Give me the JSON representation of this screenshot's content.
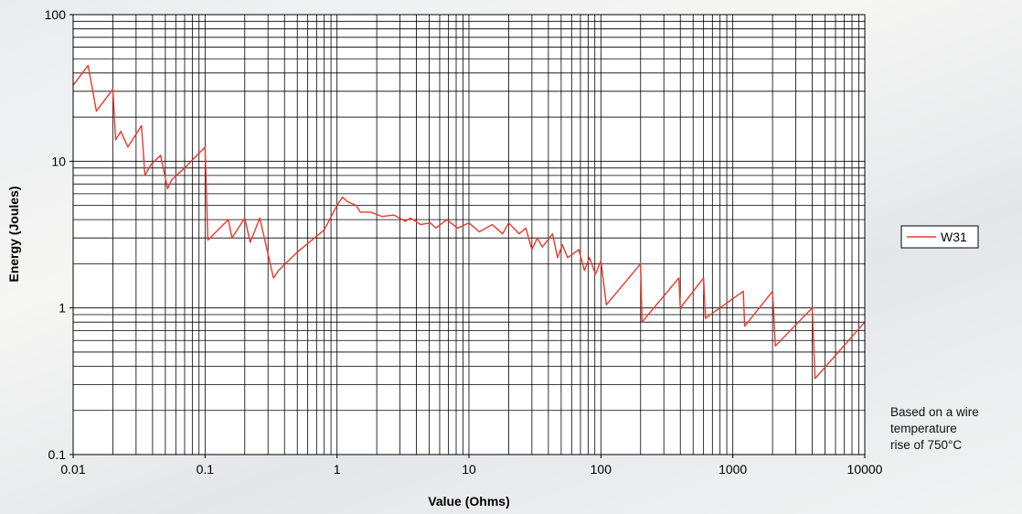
{
  "chart_data": {
    "type": "line",
    "title": "",
    "xlabel": "Value (Ohms)",
    "ylabel": "Energy (Joules)",
    "x_scale": "log",
    "y_scale": "log",
    "xlim": [
      0.01,
      10000
    ],
    "ylim": [
      0.1,
      100
    ],
    "x_ticks": [
      0.01,
      0.1,
      1,
      10,
      100,
      1000,
      10000
    ],
    "x_tick_labels": [
      "0.01",
      "0.1",
      "1",
      "10",
      "100",
      "1000",
      "10000"
    ],
    "y_ticks": [
      0.1,
      1,
      10,
      100
    ],
    "y_tick_labels": [
      "0.1",
      "1",
      "10",
      "100"
    ],
    "grid": true,
    "legend_position": "right",
    "series": [
      {
        "name": "W31",
        "color": "#e8392c",
        "x": [
          0.01,
          0.013,
          0.015,
          0.02,
          0.021,
          0.023,
          0.026,
          0.033,
          0.035,
          0.039,
          0.046,
          0.052,
          0.056,
          0.07,
          0.1,
          0.105,
          0.15,
          0.16,
          0.2,
          0.22,
          0.26,
          0.33,
          0.36,
          0.5,
          0.8,
          1.0,
          1.1,
          1.2,
          1.4,
          1.5,
          1.8,
          2.2,
          2.7,
          3.3,
          3.6,
          4.3,
          5.1,
          5.6,
          6.8,
          8.2,
          10,
          12,
          15,
          18,
          20,
          24,
          27,
          30,
          33,
          36,
          43,
          47,
          51,
          56,
          68,
          75,
          82,
          91,
          100,
          110,
          200,
          205,
          390,
          400,
          600,
          620,
          1200,
          1230,
          2000,
          2100,
          4000,
          4200,
          10000
        ],
        "values": [
          33,
          45,
          22,
          31,
          14,
          16,
          12.5,
          17.5,
          8,
          9.5,
          11,
          6.5,
          7.5,
          9,
          12.5,
          2.9,
          4,
          3,
          4.1,
          2.8,
          4.1,
          1.6,
          1.8,
          2.4,
          3.4,
          5,
          5.7,
          5.3,
          5,
          4.5,
          4.5,
          4.2,
          4.3,
          3.9,
          4.1,
          3.7,
          3.8,
          3.5,
          4,
          3.5,
          3.8,
          3.3,
          3.7,
          3.2,
          3.8,
          3.2,
          3.5,
          2.5,
          3,
          2.6,
          3.2,
          2.2,
          2.7,
          2.2,
          2.5,
          1.8,
          2.2,
          1.7,
          2.1,
          1.05,
          2,
          0.8,
          1.6,
          1,
          1.6,
          0.85,
          1.3,
          0.75,
          1.3,
          0.55,
          1,
          0.33,
          0.8
        ]
      }
    ]
  },
  "legend": {
    "label": "W31"
  },
  "note": {
    "line1": "Based on a wire",
    "line2": "temperature",
    "line3": "rise of 750°C"
  }
}
